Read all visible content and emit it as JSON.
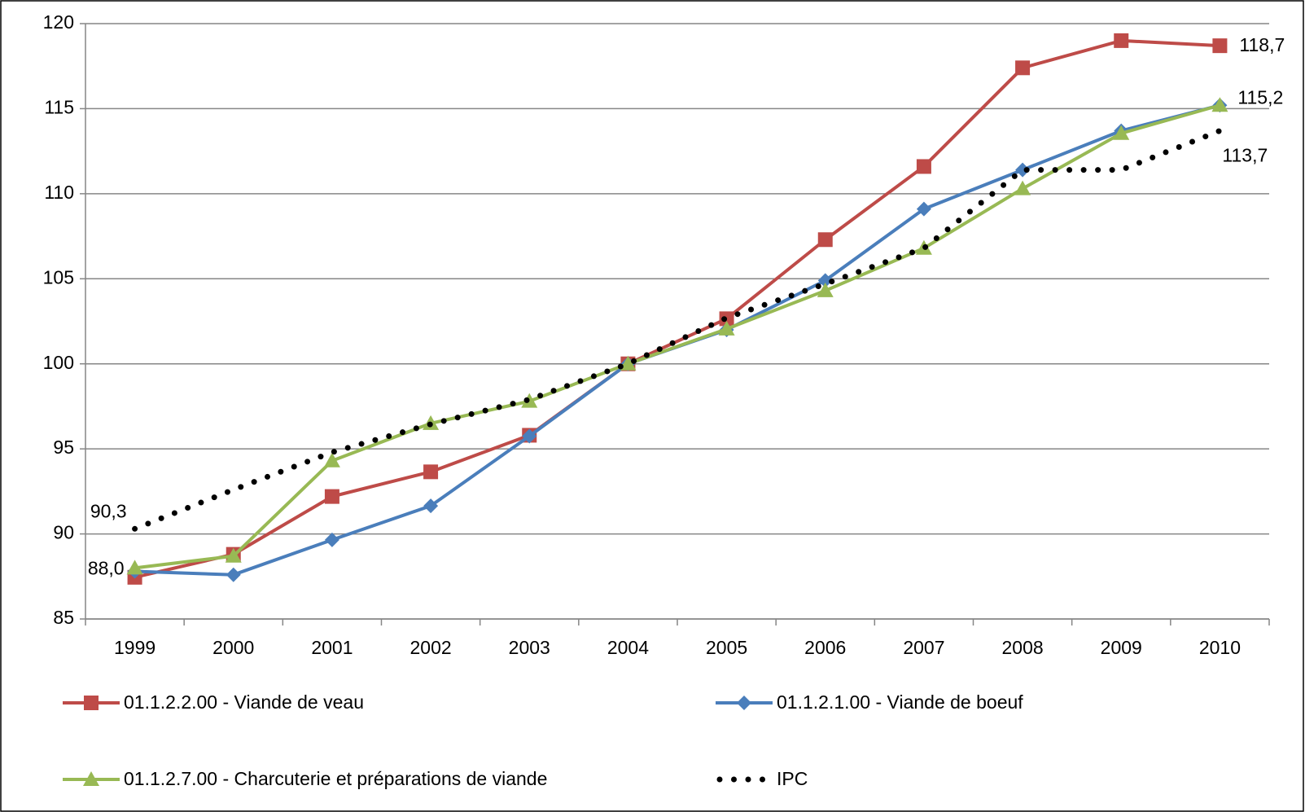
{
  "chart_data": {
    "type": "line",
    "categories": [
      "1999",
      "2000",
      "2001",
      "2002",
      "2003",
      "2004",
      "2005",
      "2006",
      "2007",
      "2008",
      "2009",
      "2010"
    ],
    "series": [
      {
        "name": "01.1.2.2.00 - Viande de veau",
        "color": "#be4b48",
        "marker": "square",
        "values": [
          87.45,
          88.8,
          92.2,
          93.65,
          95.8,
          100.0,
          102.65,
          107.3,
          111.6,
          117.4,
          119.0,
          118.7
        ],
        "value_labels": [
          null,
          null,
          null,
          null,
          null,
          null,
          null,
          null,
          null,
          null,
          null,
          "118,7"
        ]
      },
      {
        "name": "01.1.2.1.00 - Viande de boeuf",
        "color": "#4a7ebb",
        "marker": "diamond",
        "values": [
          87.8,
          87.6,
          89.65,
          91.65,
          95.75,
          100.0,
          102.0,
          104.9,
          109.1,
          111.4,
          113.7,
          115.2
        ],
        "value_labels": [
          null,
          null,
          null,
          null,
          null,
          null,
          null,
          null,
          null,
          null,
          null,
          "115,2"
        ]
      },
      {
        "name": "01.1.2.7.00 - Charcuterie et préparations de viande",
        "color": "#98b954",
        "marker": "triangle",
        "values": [
          88.0,
          88.7,
          94.3,
          96.5,
          97.8,
          100.0,
          102.05,
          104.3,
          106.8,
          110.3,
          113.55,
          115.2
        ],
        "value_labels": [
          "88,0",
          null,
          null,
          null,
          null,
          null,
          null,
          null,
          null,
          null,
          null,
          null
        ]
      },
      {
        "name": "IPC",
        "color": "#000000",
        "marker": "dots",
        "values": [
          90.3,
          92.6,
          94.8,
          96.45,
          97.9,
          100.0,
          102.7,
          104.7,
          106.8,
          111.4,
          111.4,
          113.7
        ],
        "value_labels": [
          "90,3",
          null,
          null,
          null,
          null,
          null,
          null,
          null,
          null,
          null,
          null,
          "113,7"
        ]
      }
    ],
    "ylim": [
      85,
      120
    ],
    "yticks": [
      85,
      90,
      95,
      100,
      105,
      110,
      115,
      120
    ],
    "grid": true
  }
}
